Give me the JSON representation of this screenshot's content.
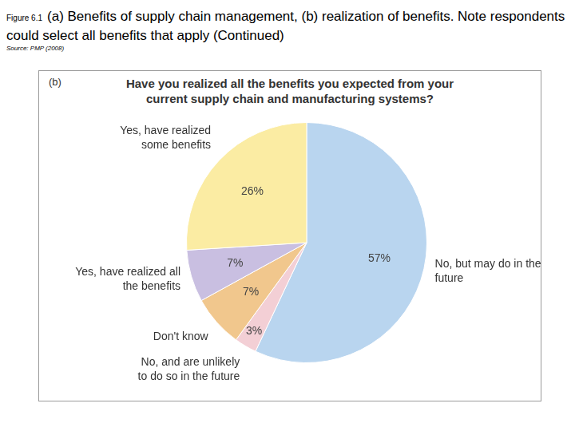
{
  "figure_label": "Figure 6.1",
  "caption": "(a) Benefits of supply chain management, (b) realization of benefits. Note respondents could select all benefits that apply (Continued)",
  "source": "Source: PMP (2008)",
  "chart_data": {
    "type": "pie",
    "title": "Have you realized all the benefits you expected from your current supply chain and manufacturing systems?",
    "annotations": [
      "(b)"
    ],
    "categories": [
      "No, but may do in the future",
      "No, and are unlikely to do so in the future",
      "Don't know",
      "Yes, have realized all the benefits",
      "Yes, have realized some benefits"
    ],
    "values": [
      57,
      3,
      7,
      7,
      26
    ],
    "value_labels": [
      "57%",
      "3%",
      "7%",
      "7%",
      "26%"
    ],
    "colors": [
      "#b9d5ef",
      "#f3cfd5",
      "#f1c78d",
      "#c9bfe1",
      "#fbeca3"
    ],
    "data_labels": true
  }
}
